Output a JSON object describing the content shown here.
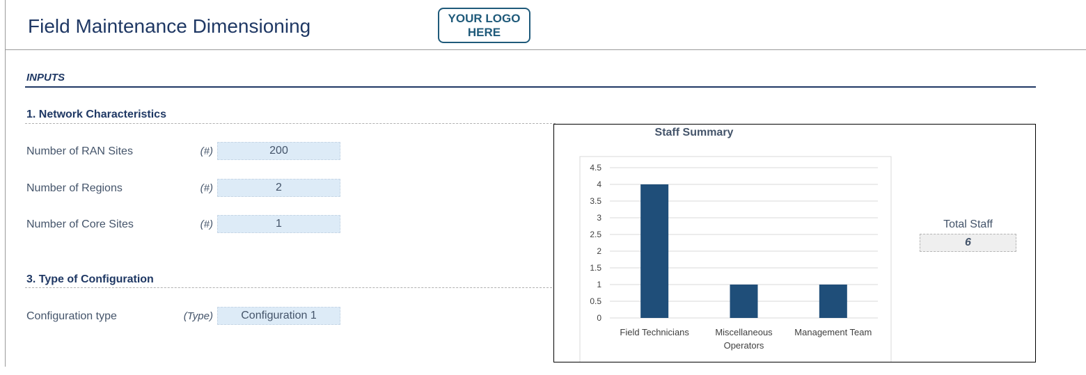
{
  "header": {
    "title": "Field Maintenance Dimensioning",
    "logo_text": "YOUR LOGO HERE"
  },
  "inputs": {
    "heading": "INPUTS",
    "section1": {
      "heading": "1. Network Characteristics",
      "fields": [
        {
          "label": "Number of RAN Sites",
          "unit": "(#)",
          "value": "200"
        },
        {
          "label": "Number of Regions",
          "unit": "(#)",
          "value": "2"
        },
        {
          "label": "Number of Core Sites",
          "unit": "(#)",
          "value": "1"
        }
      ]
    },
    "section3": {
      "heading": "3. Type of Configuration",
      "fields": [
        {
          "label": "Configuration type",
          "unit": "(Type)",
          "value": "Configuration 1"
        }
      ]
    }
  },
  "summary": {
    "total_label": "Total Staff",
    "total_value": "6"
  },
  "colors": {
    "title": "#1f3864",
    "bar": "#1f4e79",
    "input_fill": "#ddebf7",
    "total_fill": "#efefef"
  },
  "chart_data": {
    "type": "bar",
    "title": "Staff Summary",
    "categories": [
      "Field Technicians",
      "Miscellaneous Operators",
      "Management Team"
    ],
    "category_lines": [
      [
        "Field Technicians"
      ],
      [
        "Miscellaneous",
        "Operators"
      ],
      [
        "Management Team"
      ]
    ],
    "values": [
      4,
      1,
      1
    ],
    "ylim": [
      0,
      4.5
    ],
    "yticks": [
      "0",
      "0.5",
      "1",
      "1.5",
      "2",
      "2.5",
      "3",
      "3.5",
      "4",
      "4.5"
    ],
    "grid": true,
    "legend": "none"
  }
}
